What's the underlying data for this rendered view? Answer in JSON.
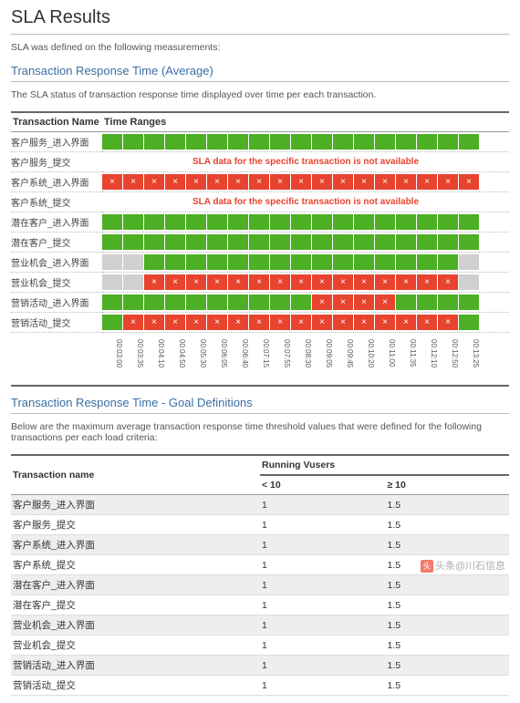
{
  "page_title": "SLA Results",
  "intro": "SLA was defined on the following measurements:",
  "section1": {
    "title": "Transaction Response Time (Average)",
    "desc": "The SLA status of transaction response time displayed over time per each transaction.",
    "col_tx": "Transaction Name",
    "col_ranges": "Time Ranges",
    "not_available_msg": "SLA data for the specific transaction is not available",
    "time_ticks": [
      "00:03:00",
      "00:03:35",
      "00:04:10",
      "00:04:50",
      "00:05:30",
      "00:06:05",
      "00:06:40",
      "00:07:15",
      "00:07:55",
      "00:08:30",
      "00:09:05",
      "00:09:45",
      "00:10:20",
      "00:11:00",
      "00:11:35",
      "00:12:10",
      "00:12:50",
      "00:13:25"
    ],
    "rows": [
      {
        "name": "客户服务_进入界面",
        "cells": [
          "pass",
          "pass",
          "pass",
          "pass",
          "pass",
          "pass",
          "pass",
          "pass",
          "pass",
          "pass",
          "pass",
          "pass",
          "pass",
          "pass",
          "pass",
          "pass",
          "pass",
          "pass"
        ]
      },
      {
        "name": "客户服务_提交",
        "unavailable": true
      },
      {
        "name": "客户系统_进入界面",
        "cells": [
          "fail",
          "fail",
          "fail",
          "fail",
          "fail",
          "fail",
          "fail",
          "fail",
          "fail",
          "fail",
          "fail",
          "fail",
          "fail",
          "fail",
          "fail",
          "fail",
          "fail",
          "fail"
        ]
      },
      {
        "name": "客户系统_提交",
        "unavailable": true
      },
      {
        "name": "潜在客户_进入界面",
        "cells": [
          "pass",
          "pass",
          "pass",
          "pass",
          "pass",
          "pass",
          "pass",
          "pass",
          "pass",
          "pass",
          "pass",
          "pass",
          "pass",
          "pass",
          "pass",
          "pass",
          "pass",
          "pass"
        ]
      },
      {
        "name": "潜在客户_提交",
        "cells": [
          "pass",
          "pass",
          "pass",
          "pass",
          "pass",
          "pass",
          "pass",
          "pass",
          "pass",
          "pass",
          "pass",
          "pass",
          "pass",
          "pass",
          "pass",
          "pass",
          "pass",
          "pass"
        ]
      },
      {
        "name": "营业机会_进入界面",
        "cells": [
          "na",
          "na",
          "pass",
          "pass",
          "pass",
          "pass",
          "pass",
          "pass",
          "pass",
          "pass",
          "pass",
          "pass",
          "pass",
          "pass",
          "pass",
          "pass",
          "pass",
          "na"
        ]
      },
      {
        "name": "营业机会_提交",
        "cells": [
          "na",
          "na",
          "fail",
          "fail",
          "fail",
          "fail",
          "fail",
          "fail",
          "fail",
          "fail",
          "fail",
          "fail",
          "fail",
          "fail",
          "fail",
          "fail",
          "fail",
          "na"
        ]
      },
      {
        "name": "营销活动_进入界面",
        "cells": [
          "pass",
          "pass",
          "pass",
          "pass",
          "pass",
          "pass",
          "pass",
          "pass",
          "pass",
          "pass",
          "fail",
          "fail",
          "fail",
          "fail",
          "pass",
          "pass",
          "pass",
          "pass"
        ]
      },
      {
        "name": "营销活动_提交",
        "cells": [
          "pass",
          "fail",
          "fail",
          "fail",
          "fail",
          "fail",
          "fail",
          "fail",
          "fail",
          "fail",
          "fail",
          "fail",
          "fail",
          "fail",
          "fail",
          "fail",
          "fail",
          "pass"
        ]
      }
    ],
    "colors": {
      "pass": "#4caf24",
      "fail": "#e8432e",
      "na": "#d0d0d0"
    }
  },
  "section2": {
    "title": "Transaction Response Time - Goal Definitions",
    "desc": "Below are the maximum average transaction response time threshold values that were defined for the following transactions per each load criteria:",
    "col_tx": "Transaction name",
    "col_vusers": "Running Vusers",
    "sub_lt": "< 10",
    "sub_ge": "≥ 10",
    "rows": [
      {
        "name": "客户服务_进入界面",
        "lt": "1",
        "ge": "1.5"
      },
      {
        "name": "客户服务_提交",
        "lt": "1",
        "ge": "1.5"
      },
      {
        "name": "客户系统_进入界面",
        "lt": "1",
        "ge": "1.5"
      },
      {
        "name": "客户系统_提交",
        "lt": "1",
        "ge": "1.5"
      },
      {
        "name": "潜在客户_进入界面",
        "lt": "1",
        "ge": "1.5"
      },
      {
        "name": "潜在客户_提交",
        "lt": "1",
        "ge": "1.5"
      },
      {
        "name": "营业机会_进入界面",
        "lt": "1",
        "ge": "1.5"
      },
      {
        "name": "营业机会_提交",
        "lt": "1",
        "ge": "1.5"
      },
      {
        "name": "营销活动_进入界面",
        "lt": "1",
        "ge": "1.5"
      },
      {
        "name": "营销活动_提交",
        "lt": "1",
        "ge": "1.5"
      }
    ]
  },
  "watermark": {
    "prefix": "头条",
    "suffix": "@川石信息"
  }
}
